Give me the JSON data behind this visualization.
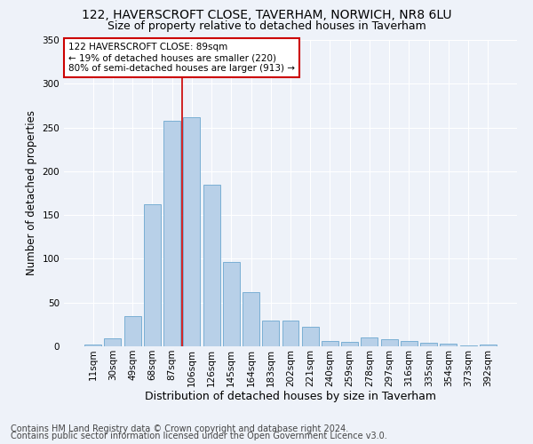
{
  "title1": "122, HAVERSCROFT CLOSE, TAVERHAM, NORWICH, NR8 6LU",
  "title2": "Size of property relative to detached houses in Taverham",
  "xlabel": "Distribution of detached houses by size in Taverham",
  "ylabel": "Number of detached properties",
  "categories": [
    "11sqm",
    "30sqm",
    "49sqm",
    "68sqm",
    "87sqm",
    "106sqm",
    "126sqm",
    "145sqm",
    "164sqm",
    "183sqm",
    "202sqm",
    "221sqm",
    "240sqm",
    "259sqm",
    "278sqm",
    "297sqm",
    "316sqm",
    "335sqm",
    "354sqm",
    "373sqm",
    "392sqm"
  ],
  "values": [
    2,
    9,
    35,
    162,
    258,
    262,
    185,
    96,
    62,
    29,
    29,
    22,
    6,
    5,
    10,
    8,
    6,
    4,
    3,
    1,
    2
  ],
  "bar_color": "#b8d0e8",
  "bar_edge_color": "#7aafd4",
  "vline_index": 4,
  "vline_color": "#cc0000",
  "annotation_line1": "122 HAVERSCROFT CLOSE: 89sqm",
  "annotation_line2": "← 19% of detached houses are smaller (220)",
  "annotation_line3": "80% of semi-detached houses are larger (913) →",
  "annotation_box_color": "white",
  "annotation_box_edge": "#cc0000",
  "footer1": "Contains HM Land Registry data © Crown copyright and database right 2024.",
  "footer2": "Contains public sector information licensed under the Open Government Licence v3.0.",
  "bg_color": "#eef2f9",
  "ylim": [
    0,
    350
  ],
  "title1_fontsize": 10,
  "title2_fontsize": 9,
  "xlabel_fontsize": 9,
  "ylabel_fontsize": 8.5,
  "tick_fontsize": 7.5,
  "footer_fontsize": 7
}
